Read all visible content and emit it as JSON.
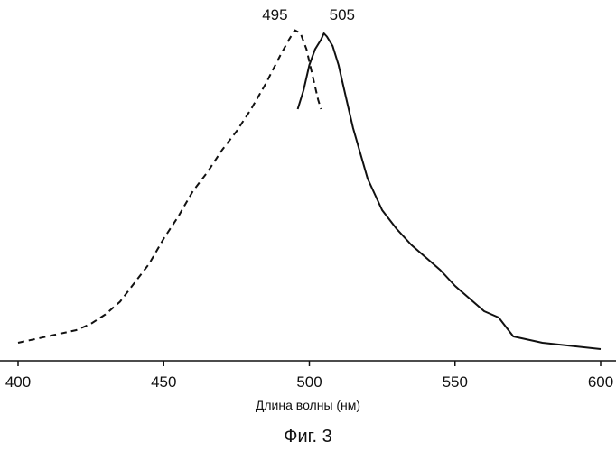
{
  "chart_data": {
    "type": "line",
    "xlabel": "Длина волны (нм)",
    "ylabel": "",
    "caption": "Фиг. 3",
    "xlim": [
      400,
      600
    ],
    "ylim": [
      0,
      1
    ],
    "xticks": [
      400,
      450,
      500,
      550,
      600
    ],
    "grid": false,
    "legend": "none",
    "series": [
      {
        "style": "dashed",
        "x": [
          400,
          410,
          420,
          425,
          430,
          435,
          440,
          445,
          450,
          455,
          460,
          465,
          470,
          475,
          480,
          485,
          490,
          493,
          495,
          497,
          499,
          501,
          503,
          504
        ],
        "y": [
          0.0,
          0.02,
          0.04,
          0.06,
          0.09,
          0.13,
          0.19,
          0.25,
          0.33,
          0.4,
          0.48,
          0.54,
          0.61,
          0.67,
          0.74,
          0.82,
          0.91,
          0.96,
          0.99,
          0.98,
          0.93,
          0.85,
          0.77,
          0.74
        ]
      },
      {
        "style": "solid",
        "x": [
          496,
          498,
          500,
          502,
          504,
          505,
          506,
          508,
          510,
          512,
          515,
          520,
          525,
          530,
          535,
          540,
          545,
          550,
          555,
          560,
          565,
          570,
          575,
          580,
          590,
          600
        ],
        "y": [
          0.74,
          0.8,
          0.88,
          0.93,
          0.96,
          0.98,
          0.97,
          0.94,
          0.88,
          0.8,
          0.68,
          0.52,
          0.42,
          0.36,
          0.31,
          0.27,
          0.23,
          0.18,
          0.14,
          0.1,
          0.08,
          0.02,
          0.01,
          0.0,
          -0.01,
          -0.02
        ]
      }
    ],
    "peak_labels": [
      {
        "text": "495",
        "x": 495
      },
      {
        "text": "505",
        "x": 505
      }
    ]
  }
}
